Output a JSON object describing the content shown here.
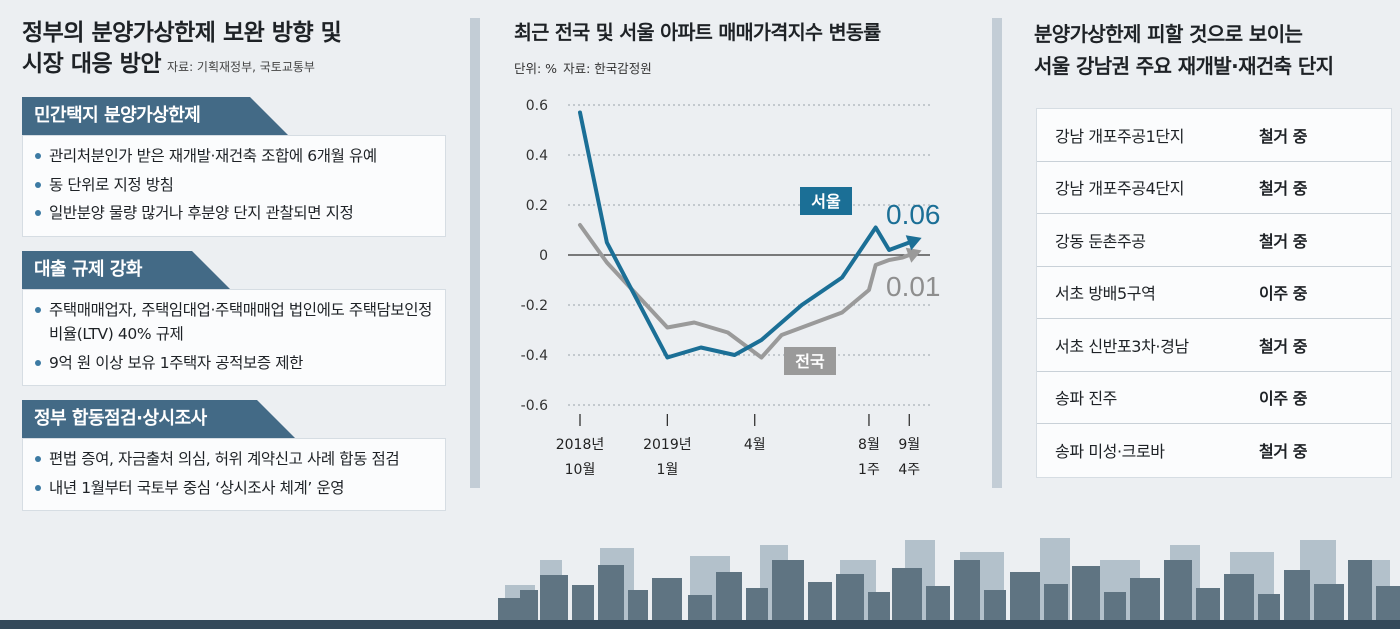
{
  "left": {
    "title_line1": "정부의 분양가상한제 보완 방향 및",
    "title_line2": "시장 대응 방안",
    "source": "자료: 기획재정부, 국토교통부",
    "sections": [
      {
        "heading": "민간택지 분양가상한제",
        "bullets": [
          "관리처분인가 받은 재개발·재건축 조합에 6개월 유예",
          "동 단위로 지정 방침",
          "일반분양 물량 많거나 후분양 단지 관찰되면 지정"
        ]
      },
      {
        "heading": "대출 규제 강화",
        "bullets": [
          "주택매매업자, 주택임대업·주택매매업 법인에도 주택담보인정비율(LTV) 40% 규제",
          "9억 원 이상 보유 1주택자 공적보증 제한"
        ]
      },
      {
        "heading": "정부 합동점검·상시조사",
        "bullets": [
          "편법 증여, 자금출처 의심, 허위 계약신고 사례 합동 점검",
          "내년 1월부터 국토부 중심 ‘상시조사 체계’ 운영"
        ]
      }
    ]
  },
  "chart": {
    "title": "최근 전국 및 서울 아파트 매매가격지수 변동률",
    "unit": "단위: %",
    "source": "자료: 한국감정원"
  },
  "chart_data": {
    "type": "line",
    "title": "최근 전국 및 서울 아파트 매매가격지수 변동률",
    "ylabel": "%",
    "ylim": [
      -0.6,
      0.6
    ],
    "yticks": [
      0.6,
      0.4,
      0.2,
      0,
      -0.2,
      -0.4,
      -0.6
    ],
    "ytick_labels": [
      "0.6",
      "0.4",
      "0.2",
      "0",
      "-0.2",
      "-0.4",
      "-0.6"
    ],
    "xticks": [
      {
        "x": 0,
        "line1": "2018년",
        "line2": "10월"
      },
      {
        "x": 13,
        "line1": "2019년",
        "line2": "1월"
      },
      {
        "x": 26,
        "line1": "4월",
        "line2": ""
      },
      {
        "x": 43,
        "line1": "8월",
        "line2": "1주"
      },
      {
        "x": 49,
        "line1": "9월",
        "line2": "4주"
      }
    ],
    "grid": "horizontal-dotted",
    "series": [
      {
        "name": "서울",
        "color": "#1b6f96",
        "end_label": "0.06",
        "x": [
          0,
          4,
          13,
          18,
          23,
          27,
          33,
          39,
          44,
          46,
          47,
          49,
          50
        ],
        "y": [
          0.57,
          0.05,
          -0.41,
          -0.37,
          -0.4,
          -0.34,
          -0.2,
          -0.09,
          0.11,
          0.02,
          0.03,
          0.05,
          0.06
        ]
      },
      {
        "name": "전국",
        "color": "#9a9a9a",
        "end_label": "0.01",
        "x": [
          0,
          4,
          13,
          17,
          22,
          27,
          30,
          36,
          39,
          43,
          44,
          45,
          46,
          48,
          50
        ],
        "y": [
          0.12,
          -0.03,
          -0.29,
          -0.27,
          -0.31,
          -0.41,
          -0.32,
          -0.26,
          -0.23,
          -0.14,
          -0.04,
          -0.03,
          -0.02,
          -0.01,
          0.01
        ]
      }
    ]
  },
  "right": {
    "title_line1": "분양가상한제 피할 것으로 보이는",
    "title_line2": "서울 강남권 주요 재개발·재건축 단지",
    "rows": [
      {
        "name": "강남 개포주공1단지",
        "status": "철거 중"
      },
      {
        "name": "강남 개포주공4단지",
        "status": "철거 중"
      },
      {
        "name": "강동 둔촌주공",
        "status": "철거 중"
      },
      {
        "name": "서초 방배5구역",
        "status": "이주 중"
      },
      {
        "name": "서초 신반포3차·경남",
        "status": "철거 중"
      },
      {
        "name": "송파 진주",
        "status": "이주 중"
      },
      {
        "name": "송파 미성·크로바",
        "status": "철거 중"
      }
    ]
  },
  "colors": {
    "accent": "#436a86",
    "seoul": "#1b6f96",
    "national": "#9a9a9a",
    "skyline": "#5f7482"
  }
}
